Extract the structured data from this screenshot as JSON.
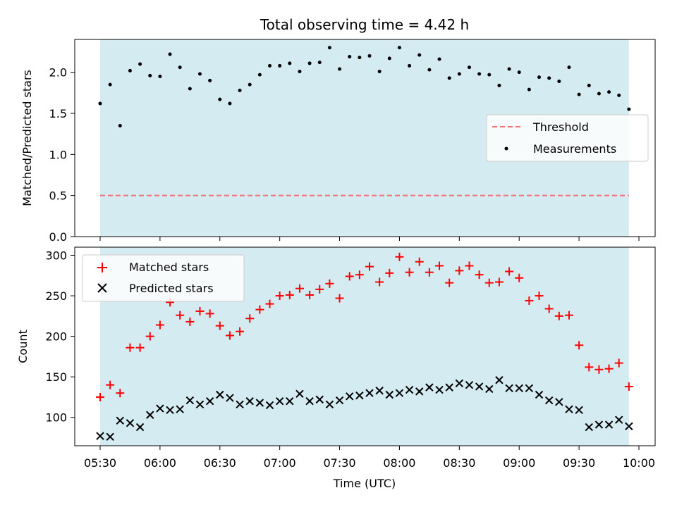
{
  "chart_data": {
    "title": "Total observing time = 4.42 h",
    "xlabel": "Time (UTC)",
    "x_ticks": [
      "05:30",
      "06:00",
      "06:30",
      "07:00",
      "07:30",
      "08:00",
      "08:30",
      "09:00",
      "09:30",
      "10:00"
    ],
    "shaded_range": [
      "05:30",
      "09:55"
    ],
    "shade_color": "#d4ebf1",
    "panels": [
      {
        "type": "scatter",
        "ylabel": "Matched/Predicted stars",
        "ylim": [
          0,
          2.4
        ],
        "y_ticks": [
          "0.0",
          "0.5",
          "1.0",
          "1.5",
          "2.0"
        ],
        "legend_position": "center-right",
        "series": [
          {
            "name": "Threshold",
            "kind": "dashed-line",
            "color": "#f07474",
            "x": [
              "05:30",
              "09:55"
            ],
            "y": [
              0.5,
              0.5
            ]
          },
          {
            "name": "Measurements",
            "kind": "dots",
            "color": "#000000",
            "x": [
              "05:30",
              "05:35",
              "05:40",
              "05:45",
              "05:50",
              "05:55",
              "06:00",
              "06:05",
              "06:10",
              "06:15",
              "06:20",
              "06:25",
              "06:30",
              "06:35",
              "06:40",
              "06:45",
              "06:50",
              "06:55",
              "07:00",
              "07:05",
              "07:10",
              "07:15",
              "07:20",
              "07:25",
              "07:30",
              "07:35",
              "07:40",
              "07:45",
              "07:50",
              "07:55",
              "08:00",
              "08:05",
              "08:10",
              "08:15",
              "08:20",
              "08:25",
              "08:30",
              "08:35",
              "08:40",
              "08:45",
              "08:50",
              "08:55",
              "09:00",
              "09:05",
              "09:10",
              "09:15",
              "09:20",
              "09:25",
              "09:30",
              "09:35",
              "09:40",
              "09:45",
              "09:50",
              "09:55"
            ],
            "y": [
              1.62,
              1.85,
              1.35,
              2.02,
              2.1,
              1.96,
              1.95,
              2.22,
              2.06,
              1.8,
              1.98,
              1.9,
              1.67,
              1.62,
              1.78,
              1.85,
              1.97,
              2.08,
              2.08,
              2.11,
              2.01,
              2.11,
              2.12,
              2.3,
              2.04,
              2.19,
              2.18,
              2.2,
              2.01,
              2.17,
              2.3,
              2.08,
              2.21,
              2.03,
              2.16,
              1.93,
              1.98,
              2.06,
              1.98,
              1.97,
              1.84,
              2.04,
              2.0,
              1.79,
              1.94,
              1.93,
              1.89,
              2.06,
              1.73,
              1.84,
              1.74,
              1.76,
              1.72,
              1.55
            ]
          }
        ]
      },
      {
        "type": "scatter",
        "ylabel": "Count",
        "ylim": [
          65,
          310
        ],
        "y_ticks": [
          "100",
          "150",
          "200",
          "250",
          "300"
        ],
        "legend_position": "upper-left",
        "series": [
          {
            "name": "Matched stars",
            "kind": "plus",
            "color": "#ff0000",
            "x": [
              "05:30",
              "05:35",
              "05:40",
              "05:45",
              "05:50",
              "05:55",
              "06:00",
              "06:05",
              "06:10",
              "06:15",
              "06:20",
              "06:25",
              "06:30",
              "06:35",
              "06:40",
              "06:45",
              "06:50",
              "06:55",
              "07:00",
              "07:05",
              "07:10",
              "07:15",
              "07:20",
              "07:25",
              "07:30",
              "07:35",
              "07:40",
              "07:45",
              "07:50",
              "07:55",
              "08:00",
              "08:05",
              "08:10",
              "08:15",
              "08:20",
              "08:25",
              "08:30",
              "08:35",
              "08:40",
              "08:45",
              "08:50",
              "08:55",
              "09:00",
              "09:05",
              "09:10",
              "09:15",
              "09:20",
              "09:25",
              "09:30",
              "09:35",
              "09:40",
              "09:45",
              "09:50",
              "09:55"
            ],
            "y": [
              125,
              140,
              130,
              186,
              186,
              200,
              214,
              242,
              226,
              218,
              231,
              228,
              213,
              201,
              206,
              222,
              233,
              240,
              250,
              251,
              259,
              251,
              258,
              265,
              247,
              274,
              276,
              286,
              267,
              278,
              298,
              279,
              292,
              279,
              287,
              266,
              281,
              287,
              276,
              266,
              267,
              280,
              272,
              244,
              250,
              234,
              225,
              226,
              189,
              162,
              159,
              160,
              167,
              138
            ]
          },
          {
            "name": "Predicted stars",
            "kind": "cross",
            "color": "#000000",
            "x": [
              "05:30",
              "05:35",
              "05:40",
              "05:45",
              "05:50",
              "05:55",
              "06:00",
              "06:05",
              "06:10",
              "06:15",
              "06:20",
              "06:25",
              "06:30",
              "06:35",
              "06:40",
              "06:45",
              "06:50",
              "06:55",
              "07:00",
              "07:05",
              "07:10",
              "07:15",
              "07:20",
              "07:25",
              "07:30",
              "07:35",
              "07:40",
              "07:45",
              "07:50",
              "07:55",
              "08:00",
              "08:05",
              "08:10",
              "08:15",
              "08:20",
              "08:25",
              "08:30",
              "08:35",
              "08:40",
              "08:45",
              "08:50",
              "08:55",
              "09:00",
              "09:05",
              "09:10",
              "09:15",
              "09:20",
              "09:25",
              "09:30",
              "09:35",
              "09:40",
              "09:45",
              "09:50",
              "09:55"
            ],
            "y": [
              77,
              76,
              96,
              93,
              88,
              103,
              111,
              109,
              110,
              121,
              116,
              120,
              128,
              124,
              116,
              120,
              118,
              115,
              120,
              120,
              129,
              120,
              122,
              116,
              121,
              126,
              127,
              130,
              133,
              128,
              130,
              134,
              132,
              137,
              134,
              137,
              142,
              140,
              138,
              135,
              146,
              136,
              136,
              136,
              128,
              121,
              119,
              110,
              109,
              88,
              91,
              91,
              97,
              89
            ]
          }
        ]
      }
    ]
  }
}
